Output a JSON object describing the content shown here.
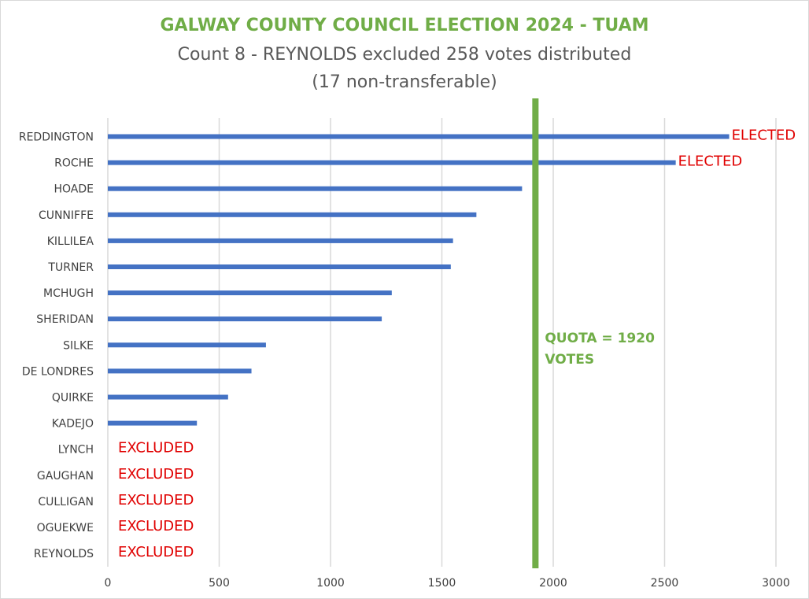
{
  "chart_data": {
    "type": "bar",
    "orientation": "horizontal",
    "title": "GALWAY COUNTY COUNCIL ELECTION 2024 - TUAM",
    "subtitle_lines": [
      "Count 8 - REYNOLDS excluded 258 votes distributed",
      "(17 non-transferable)"
    ],
    "categories": [
      "REDDINGTON",
      "ROCHE",
      "HOADE",
      "CUNNIFFE",
      "KILLILEA",
      "TURNER",
      "MCHUGH",
      "SHERIDAN",
      "SILKE",
      "DE LONDRES",
      "QUIRKE",
      "KADEJO",
      "LYNCH",
      "GAUGHAN",
      "CULLIGAN",
      "OGUEKWE",
      "REYNOLDS"
    ],
    "values": [
      2790,
      2550,
      1860,
      1655,
      1550,
      1540,
      1275,
      1230,
      710,
      645,
      540,
      400,
      0,
      0,
      0,
      0,
      0
    ],
    "status_labels": [
      "ELECTED",
      "ELECTED",
      "",
      "",
      "",
      "",
      "",
      "",
      "",
      "",
      "",
      "",
      "EXCLUDED",
      "EXCLUDED",
      "EXCLUDED",
      "EXCLUDED",
      "EXCLUDED"
    ],
    "xlim": [
      0,
      3000
    ],
    "xticks": [
      0,
      500,
      1000,
      1500,
      2000,
      2500,
      3000
    ],
    "grid": true,
    "bar_color": "#4472c4",
    "quota": {
      "value": 1920,
      "label_lines": [
        "QUOTA = 1920",
        "VOTES"
      ],
      "color": "#70ad47"
    },
    "status_color": "#e00000"
  }
}
